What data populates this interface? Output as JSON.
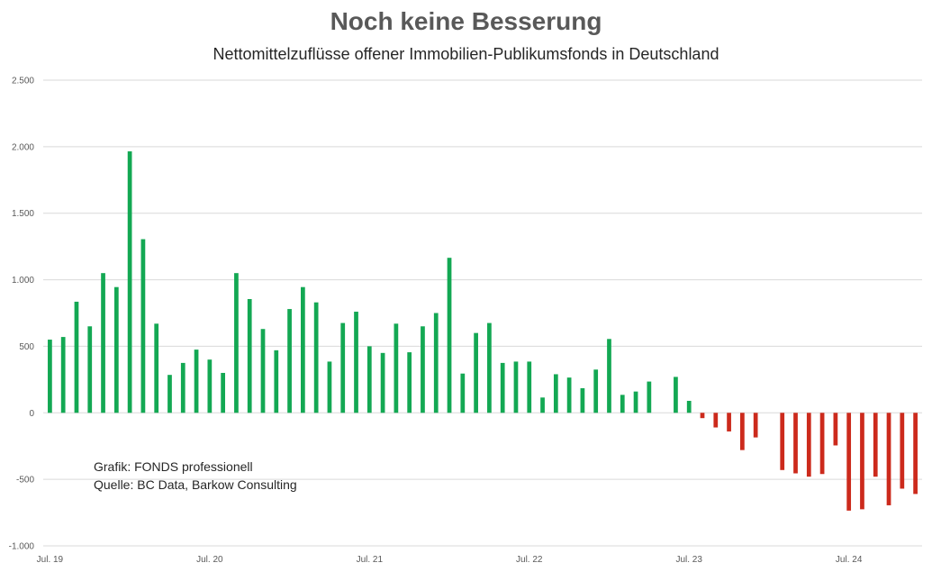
{
  "chart_data": {
    "type": "bar",
    "title": "Noch keine Besserung",
    "subtitle": "Nettomittelzuflüsse offener Immobilien-Publikumsfonds in Deutschland",
    "xlabel": "",
    "ylabel": "",
    "ylim": [
      -1000,
      2500
    ],
    "y_ticks": [
      {
        "value": 2500,
        "label": "2.500"
      },
      {
        "value": 2000,
        "label": "2.000"
      },
      {
        "value": 1500,
        "label": "1.500"
      },
      {
        "value": 1000,
        "label": "1.000"
      },
      {
        "value": 500,
        "label": "500"
      },
      {
        "value": 0,
        "label": "0"
      },
      {
        "value": -500,
        "label": "-500"
      },
      {
        "value": -1000,
        "label": "-1.000"
      }
    ],
    "x_ticks": [
      {
        "index": 0,
        "label": "Jul. 19"
      },
      {
        "index": 12,
        "label": "Jul. 20"
      },
      {
        "index": 24,
        "label": "Jul. 21"
      },
      {
        "index": 36,
        "label": "Jul. 22"
      },
      {
        "index": 48,
        "label": "Jul. 23"
      },
      {
        "index": 60,
        "label": "Jul. 24"
      }
    ],
    "values": [
      550,
      570,
      835,
      650,
      1050,
      945,
      1965,
      1305,
      670,
      285,
      375,
      475,
      400,
      300,
      1050,
      855,
      630,
      470,
      780,
      945,
      830,
      385,
      675,
      760,
      500,
      450,
      670,
      455,
      650,
      750,
      1165,
      295,
      600,
      675,
      375,
      385,
      385,
      115,
      290,
      265,
      185,
      325,
      555,
      135,
      160,
      235,
      0,
      270,
      90,
      -40,
      -110,
      -140,
      -280,
      -185,
      0,
      -430,
      -455,
      -480,
      -460,
      -245,
      -735,
      -725,
      -480,
      -695,
      -570,
      -610
    ],
    "positive_color": "#13a853",
    "negative_color": "#cc2a1c",
    "grid": true,
    "legend": "none"
  },
  "credits": {
    "line1": "Grafik: FONDS professionell",
    "line2": "Quelle: BC Data, Barkow Consulting"
  }
}
